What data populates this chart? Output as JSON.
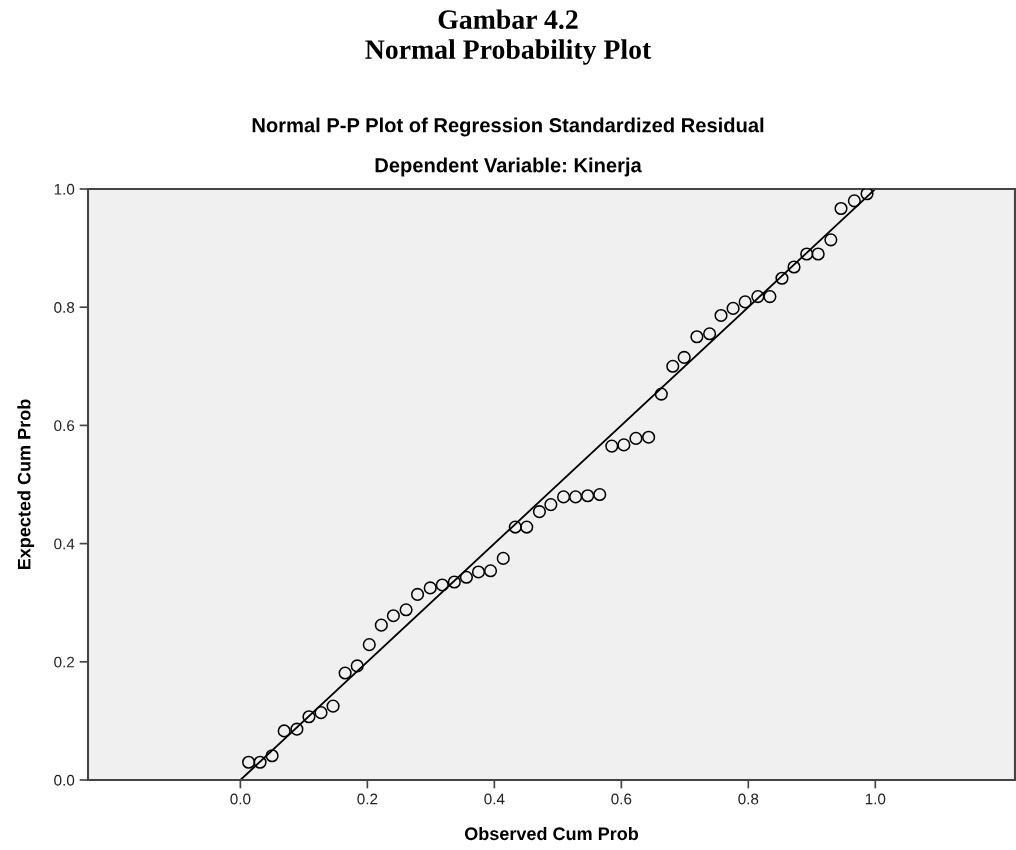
{
  "chart_data": {
    "type": "scatter",
    "title": "Normal P-P Plot of Regression Standardized Residual",
    "subtitle": "Dependent Variable: Kinerja",
    "annotations": [
      "Gambar 4.2",
      "Normal Probability Plot"
    ],
    "xlabel": "Observed Cum Prob",
    "ylabel": "Expected Cum Prob",
    "xlim": [
      -0.24,
      1.22
    ],
    "ylim": [
      0,
      1
    ],
    "xticks": [
      {
        "value": 0,
        "label": "0.0"
      },
      {
        "value": 0.2,
        "label": "0.2"
      },
      {
        "value": 0.4,
        "label": "0.4"
      },
      {
        "value": 0.6,
        "label": "0.6"
      },
      {
        "value": 0.8,
        "label": "0.8"
      },
      {
        "value": 1,
        "label": "1.0"
      }
    ],
    "yticks": [
      {
        "value": 0,
        "label": "0.0"
      },
      0.2,
      0.4,
      0.6,
      0.8,
      {
        "value": 1,
        "label": "1.0"
      }
    ],
    "grid": false,
    "legend": false,
    "series": [
      {
        "marker": "circle",
        "color": "#000000",
        "x": [
          0.013,
          0.031,
          0.05,
          0.069,
          0.089,
          0.108,
          0.127,
          0.146,
          0.165,
          0.184,
          0.203,
          0.222,
          0.241,
          0.261,
          0.279,
          0.299,
          0.318,
          0.337,
          0.356,
          0.375,
          0.394,
          0.414,
          0.433,
          0.451,
          0.471,
          0.489,
          0.509,
          0.528,
          0.547,
          0.566,
          0.585,
          0.604,
          0.623,
          0.643,
          0.663,
          0.681,
          0.699,
          0.719,
          0.739,
          0.757,
          0.776,
          0.795,
          0.815,
          0.834,
          0.853,
          0.872,
          0.892,
          0.91,
          0.93,
          0.946,
          0.967,
          0.987
        ],
        "values": [
          0.03,
          0.03,
          0.041,
          0.083,
          0.086,
          0.107,
          0.114,
          0.125,
          0.181,
          0.193,
          0.229,
          0.262,
          0.278,
          0.288,
          0.314,
          0.325,
          0.33,
          0.335,
          0.343,
          0.352,
          0.354,
          0.375,
          0.428,
          0.428,
          0.454,
          0.466,
          0.479,
          0.479,
          0.481,
          0.483,
          0.565,
          0.567,
          0.578,
          0.58,
          0.653,
          0.7,
          0.715,
          0.75,
          0.755,
          0.786,
          0.798,
          0.809,
          0.818,
          0.818,
          0.849,
          0.868,
          0.89,
          0.89,
          0.914,
          0.967,
          0.98,
          0.992
        ]
      },
      {
        "type": "line",
        "marker": "none",
        "color": "#000000",
        "x": [
          0,
          1
        ],
        "values": [
          0,
          1
        ]
      }
    ]
  }
}
